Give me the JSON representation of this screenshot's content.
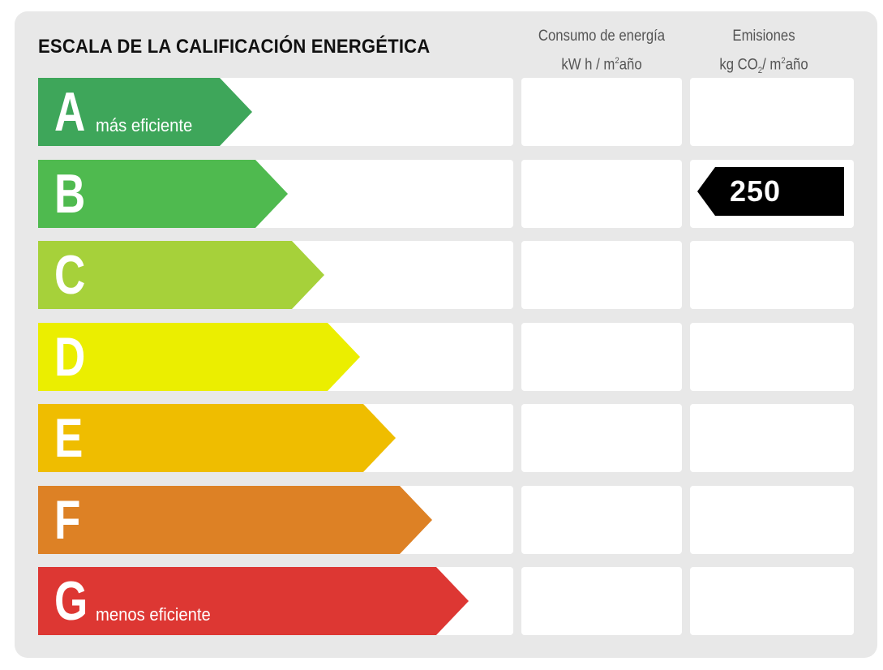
{
  "title": "ESCALA DE LA CALIFICACIÓN ENERGÉTICA",
  "columns": {
    "consumo": {
      "line1": "Consumo de energía",
      "line2_pre": "kW h / m",
      "line2_sup": "2",
      "line2_post": "año"
    },
    "emisiones": {
      "line1": "Emisiones",
      "line2_pre": "kg CO",
      "line2_sub": "2",
      "line2_mid": "/ m",
      "line2_sup": "2",
      "line2_post": "año"
    }
  },
  "bands": [
    {
      "letter": "A",
      "label": "más eficiente",
      "color": "#3ea65a"
    },
    {
      "letter": "B",
      "label": "",
      "color": "#4fba4f"
    },
    {
      "letter": "C",
      "label": "",
      "color": "#a6d13a"
    },
    {
      "letter": "D",
      "label": "",
      "color": "#ebee00"
    },
    {
      "letter": "E",
      "label": "",
      "color": "#efbd00"
    },
    {
      "letter": "F",
      "label": "",
      "color": "#dd8125"
    },
    {
      "letter": "G",
      "label": "menos eficiente",
      "color": "#dd3733"
    }
  ],
  "rating": {
    "emisiones_value": "250",
    "emisiones_band": "B"
  }
}
